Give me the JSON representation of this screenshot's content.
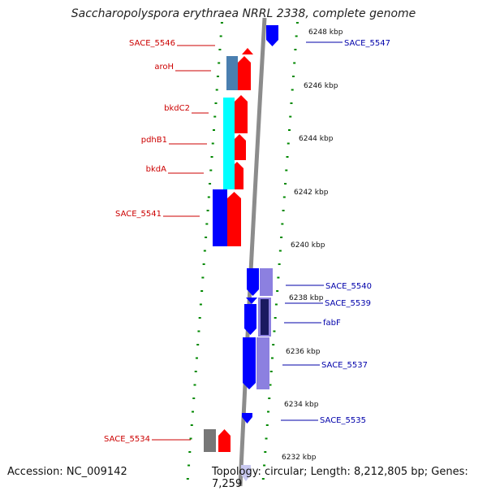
{
  "title": "Saccharopolyspora erythraea NRRL 2338, complete genome",
  "footer": {
    "accession": "Accession: NC_009142",
    "topology": "Topology: circular; Length: 8,212,805 bp; Genes: 7,259"
  },
  "colors": {
    "forward_gene": "#ff0000",
    "reverse_gene": "#0000ff",
    "operon_red": "#ff0000",
    "operon_blue": "#0000ff",
    "operon_cyan": "#00ffff",
    "operon_steelblue": "#4a7fb0",
    "operon_gray": "#777777",
    "operon_lilac": "#8c80e0",
    "label_left": "#cc0000",
    "label_right": "#0000aa",
    "tick": "#008800",
    "backbone": "#8c8c8c"
  },
  "scale_labels": [
    "6248 kbp",
    "6246 kbp",
    "6244 kbp",
    "6242 kbp",
    "6240 kbp",
    "6238 kbp",
    "6236 kbp",
    "6234 kbp",
    "6232 kbp"
  ],
  "left_labels": [
    "SACE_5546",
    "aroH",
    "bkdC2",
    "pdhB1",
    "bkdA",
    "SACE_5541",
    "SACE_5534"
  ],
  "right_labels": [
    "SACE_5547",
    "SACE_5540",
    "SACE_5539",
    "fabF",
    "SACE_5537",
    "SACE_5535"
  ]
}
